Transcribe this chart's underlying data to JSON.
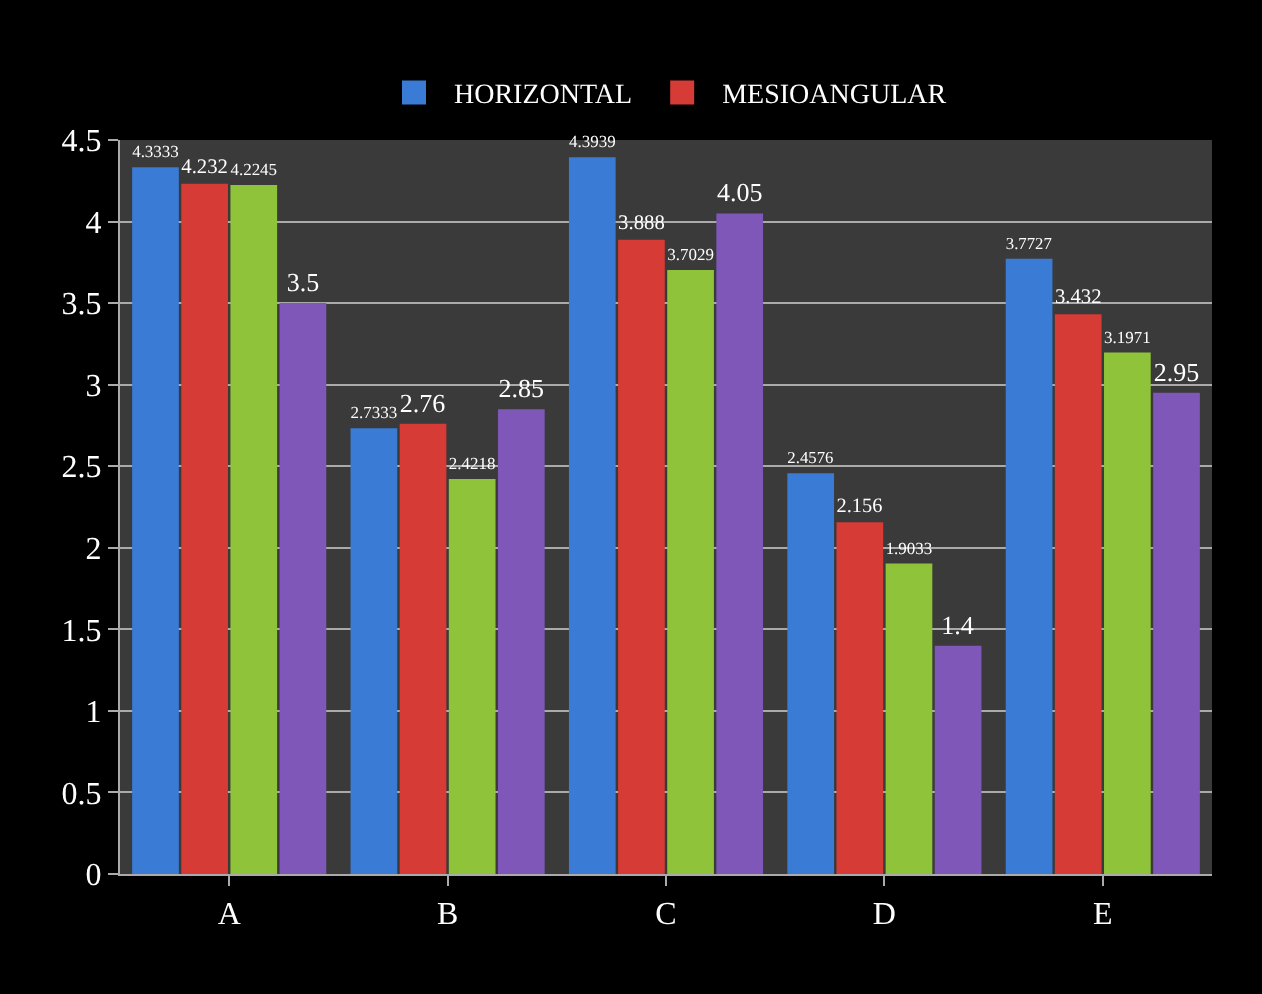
{
  "chart_data": {
    "type": "bar",
    "categories": [
      "A",
      "B",
      "C",
      "D",
      "E"
    ],
    "series": [
      {
        "name": "HORIZONTAL",
        "color": "#3a7bd5",
        "values": [
          4.3333,
          2.7333,
          4.3939,
          2.4576,
          3.7727
        ]
      },
      {
        "name": "MESIOANGULAR",
        "color": "#d63b36",
        "values": [
          4.232,
          2.76,
          3.888,
          2.156,
          3.432
        ]
      },
      {
        "color": "#8fc33a",
        "values": [
          4.2245,
          2.4218,
          3.7029,
          1.9033,
          3.1971
        ]
      },
      {
        "color": "#7e57b8",
        "values": [
          3.5,
          2.85,
          4.05,
          1.4,
          2.95
        ]
      }
    ],
    "ylim": [
      0,
      4.5
    ],
    "yticks": [
      0,
      0.5,
      1,
      1.5,
      2,
      2.5,
      3,
      3.5,
      4,
      4.5
    ],
    "grid": "y",
    "legend": "top",
    "data_labels": true
  }
}
